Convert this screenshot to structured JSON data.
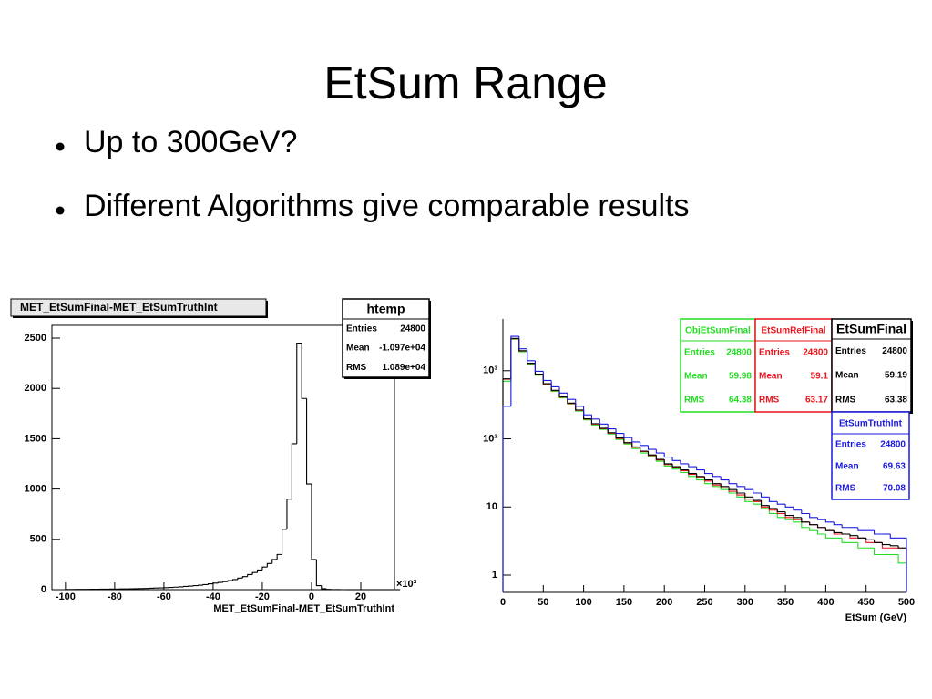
{
  "title": "EtSum Range",
  "bullets": [
    "Up to 300GeV?",
    "Different Algorithms give comparable results"
  ],
  "chart_data": [
    {
      "type": "histogram",
      "title": "MET_EtSumFinal-MET_EtSumTruthInt",
      "xlabel": "MET_EtSumFinal-MET_EtSumTruthInt",
      "x_exponent": "×10³",
      "color": "#000000",
      "bins": [
        -100,
        -98,
        -96,
        -94,
        -92,
        -90,
        -88,
        -86,
        -84,
        -82,
        -80,
        -78,
        -76,
        -74,
        -72,
        -70,
        -68,
        -66,
        -64,
        -62,
        -60,
        -58,
        -56,
        -54,
        -52,
        -50,
        -48,
        -46,
        -44,
        -42,
        -40,
        -38,
        -36,
        -34,
        -32,
        -30,
        -28,
        -26,
        -24,
        -22,
        -20,
        -18,
        -16,
        -14,
        -12,
        -10,
        -8,
        -6,
        -4,
        -2,
        0,
        2,
        4,
        6,
        8,
        10,
        12,
        14,
        16,
        18,
        20,
        22,
        24,
        26,
        28,
        30,
        32,
        34,
        36
      ],
      "values": [
        2,
        2,
        3,
        3,
        3,
        4,
        4,
        5,
        5,
        6,
        6,
        7,
        8,
        9,
        10,
        11,
        12,
        14,
        16,
        18,
        20,
        22,
        25,
        28,
        32,
        36,
        40,
        45,
        50,
        58,
        65,
        72,
        80,
        90,
        100,
        115,
        130,
        150,
        170,
        195,
        225,
        260,
        300,
        350,
        600,
        900,
        1450,
        2450,
        1900,
        1050,
        300,
        40,
        10,
        3,
        1,
        1,
        0,
        0,
        0,
        0,
        0,
        0,
        0,
        0,
        0,
        0,
        0,
        0
      ],
      "xlim": [
        -105.5,
        33.7
      ],
      "ylim": [
        0,
        2627
      ],
      "xticks": [
        -100,
        -80,
        -60,
        -40,
        -20,
        0,
        20
      ],
      "yticks": [
        0,
        500,
        1000,
        1500,
        2000,
        2500
      ],
      "stat_labels": [
        "Entries",
        "Mean",
        "RMS"
      ],
      "stats": {
        "name": "htemp",
        "entries": 24800,
        "mean": "-1.097e+04",
        "rms": "1.089e+04"
      }
    },
    {
      "type": "histogram",
      "xlabel": "EtSum (GeV)",
      "log_y": true,
      "bins": [
        0,
        10,
        20,
        30,
        40,
        50,
        60,
        70,
        80,
        90,
        100,
        110,
        120,
        130,
        140,
        150,
        160,
        170,
        180,
        190,
        200,
        210,
        220,
        230,
        240,
        250,
        260,
        270,
        280,
        290,
        300,
        310,
        320,
        330,
        340,
        350,
        360,
        370,
        380,
        390,
        400,
        410,
        420,
        430,
        440,
        450,
        460,
        470,
        480,
        490,
        500
      ],
      "xlim": [
        0,
        500
      ],
      "ylim": [
        0.557,
        5750
      ],
      "xticks": [
        0,
        50,
        100,
        150,
        200,
        250,
        300,
        350,
        400,
        450,
        500
      ],
      "yticks": [
        1,
        10,
        {
          "value": 100,
          "label": "10²"
        },
        {
          "value": 1000,
          "label": "10³"
        }
      ],
      "stat_labels": [
        "Entries",
        "Mean",
        "RMS"
      ],
      "series": [
        {
          "name": "ObjEtSumFinal",
          "color": "#22dd22",
          "values": [
            700,
            2900,
            1900,
            1250,
            860,
            620,
            500,
            400,
            325,
            255,
            190,
            160,
            138,
            118,
            98,
            84,
            72,
            62,
            55,
            47,
            40,
            36,
            32,
            28,
            25,
            22,
            20,
            18,
            16,
            14,
            12,
            11,
            9.5,
            8,
            7,
            6.5,
            6,
            5,
            4.5,
            4,
            3.5,
            3.5,
            3,
            3,
            2.5,
            2.5,
            2,
            2,
            2,
            1.5
          ],
          "stats": {
            "entries": 24800,
            "mean": 59.98,
            "rms": 64.38
          }
        },
        {
          "name": "EtSumRefFinal",
          "color": "#e8141c",
          "values": [
            750,
            2950,
            1950,
            1280,
            880,
            640,
            510,
            410,
            330,
            262,
            195,
            165,
            141,
            121,
            101,
            87,
            75,
            65,
            57,
            49,
            42,
            38,
            34,
            30,
            27,
            24,
            21,
            19,
            17,
            15,
            13,
            12,
            10,
            9,
            8,
            7,
            6.5,
            6,
            5.5,
            5,
            4.5,
            4,
            4,
            3.5,
            3.5,
            3,
            3,
            2.5,
            2.5,
            2.5
          ],
          "stats": {
            "entries": 24800,
            "mean": 59.1,
            "rms": 63.17
          }
        },
        {
          "name": "EtSumFinal",
          "color": "#000000",
          "values": [
            760,
            2980,
            1970,
            1290,
            890,
            645,
            515,
            415,
            335,
            265,
            197,
            167,
            143,
            123,
            103,
            88,
            76,
            66,
            58,
            50,
            43,
            39,
            35,
            31,
            28,
            25,
            22,
            20,
            18,
            16,
            14,
            12.5,
            10.5,
            9.5,
            8.5,
            7.5,
            7,
            6,
            5.5,
            5,
            4.5,
            4.2,
            4,
            3.8,
            3.5,
            3.3,
            3,
            2.8,
            2.7,
            2.5
          ],
          "stats": {
            "entries": 24800,
            "mean": 59.19,
            "rms": 63.38
          }
        },
        {
          "name": "EtSumTruthInt",
          "color": "#1a1ae0",
          "values": [
            300,
            3200,
            2100,
            1400,
            980,
            720,
            580,
            470,
            380,
            300,
            225,
            195,
            165,
            140,
            120,
            104,
            90,
            80,
            70,
            62,
            54,
            48,
            43,
            39,
            35,
            31,
            28,
            25,
            22,
            20,
            18,
            16,
            14,
            12,
            11,
            10,
            9,
            8,
            7,
            6.5,
            6,
            5.5,
            5,
            5,
            4.5,
            4.5,
            4,
            4,
            3.5,
            3.5
          ],
          "stats": {
            "entries": 24800,
            "mean": 69.63,
            "rms": 70.08
          }
        }
      ]
    }
  ]
}
